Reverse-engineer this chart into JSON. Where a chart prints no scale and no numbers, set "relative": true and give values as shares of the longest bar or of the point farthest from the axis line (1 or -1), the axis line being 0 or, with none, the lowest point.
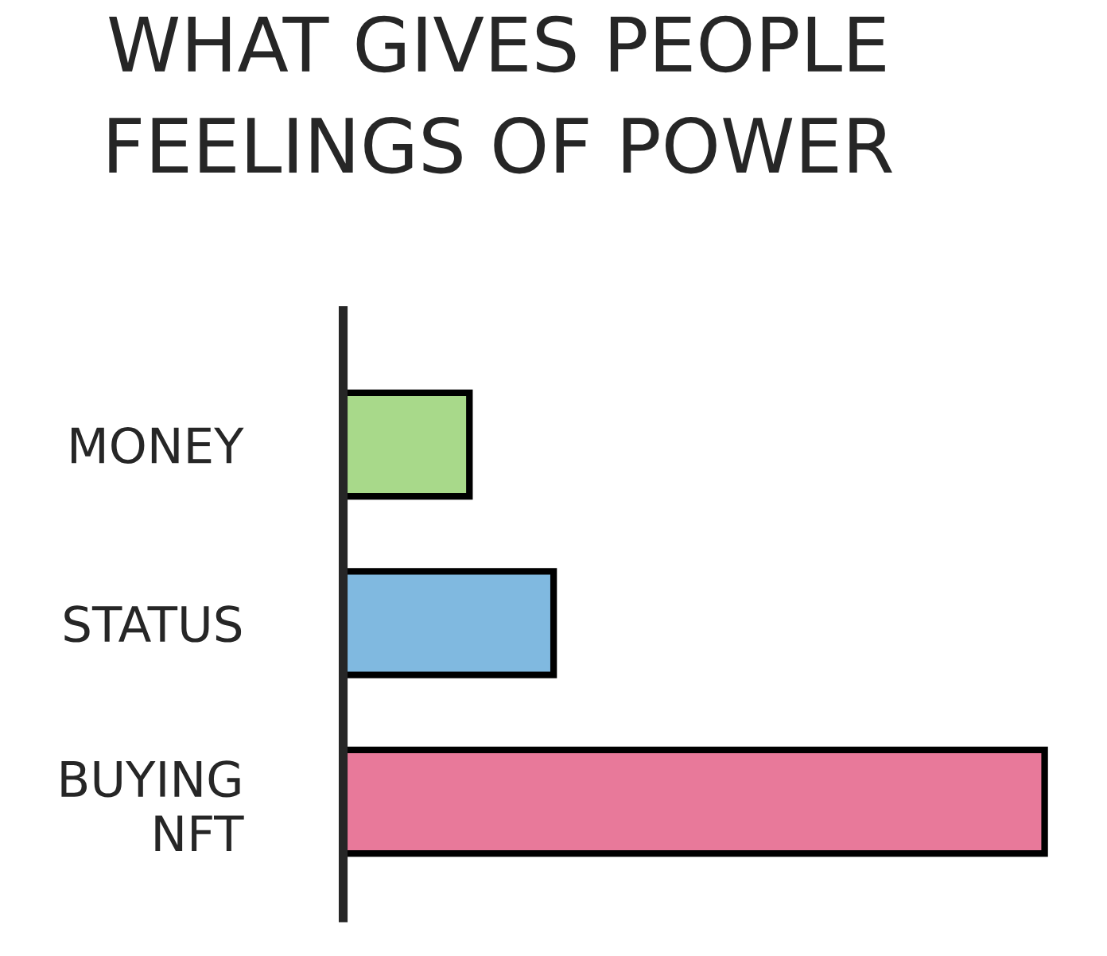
{
  "chart_data": {
    "type": "bar",
    "orientation": "horizontal",
    "relative": true,
    "title": "WHAT GIVES PEOPLE\nFEELINGS OF POWER",
    "categories": [
      "MONEY",
      "STATUS",
      "BUYING\nNFT"
    ],
    "values": [
      0.18,
      0.3,
      1
    ],
    "colors": [
      "#a8d98a",
      "#80b9e0",
      "#e8799a"
    ],
    "grid": false,
    "legend": false
  }
}
